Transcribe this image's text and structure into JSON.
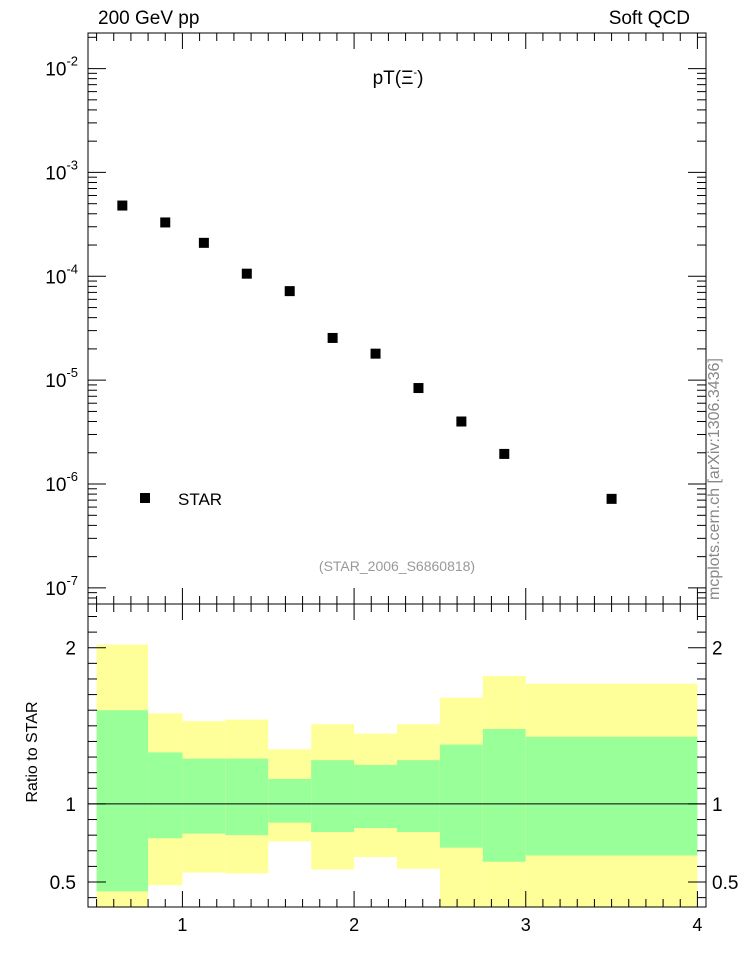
{
  "header": {
    "left": "200 GeV pp",
    "right": "Soft QCD",
    "side_note": "mcplots.cern.ch [arXiv:1306.3436]"
  },
  "chart_data": [
    {
      "type": "scatter",
      "title": "pT(Ξ⁻)",
      "annotation": "(STAR_2006_S6860818)",
      "yscale": "log",
      "xlim": [
        0.45,
        4.05
      ],
      "ylim": [
        7e-08,
        0.022
      ],
      "y_ticks": [
        {
          "v": 0.01,
          "mant": "10",
          "exp": "-2"
        },
        {
          "v": 0.001,
          "mant": "10",
          "exp": "-3"
        },
        {
          "v": 0.0001,
          "mant": "10",
          "exp": "-4"
        },
        {
          "v": 1e-05,
          "mant": "10",
          "exp": "-5"
        },
        {
          "v": 1e-06,
          "mant": "10",
          "exp": "-6"
        },
        {
          "v": 1e-07,
          "mant": "10",
          "exp": "-7"
        }
      ],
      "series": [
        {
          "name": "STAR",
          "color": "#000000",
          "marker": "square",
          "x": [
            0.65,
            0.9,
            1.125,
            1.375,
            1.625,
            1.875,
            2.125,
            2.375,
            2.625,
            2.875,
            3.5
          ],
          "y": [
            0.00048,
            0.00033,
            0.00021,
            0.000106,
            7.2e-05,
            2.55e-05,
            1.8e-05,
            8.4e-06,
            4e-06,
            1.95e-06,
            7.2e-07
          ]
        }
      ],
      "legend": {
        "position": "bottom-left",
        "entries": [
          "STAR"
        ]
      }
    },
    {
      "type": "area",
      "ylabel": "Ratio to STAR",
      "xlim": [
        0.45,
        4.05
      ],
      "ylim": [
        0.34,
        2.28
      ],
      "x_ticks": [
        "1",
        "2",
        "3",
        "4"
      ],
      "y_ticks": [
        "0.5",
        "1",
        "2"
      ],
      "reference_line": 1,
      "colors": {
        "inner_band": "#99ff99",
        "outer_band": "#ffff99"
      },
      "bins": [
        {
          "lo": 0.5,
          "hi": 0.8,
          "inner": [
            0.44,
            1.6
          ],
          "outer": [
            0.0,
            2.02
          ]
        },
        {
          "lo": 0.8,
          "hi": 1.0,
          "inner": [
            0.78,
            1.33
          ],
          "outer": [
            0.48,
            1.58
          ]
        },
        {
          "lo": 1.0,
          "hi": 1.25,
          "inner": [
            0.81,
            1.29
          ],
          "outer": [
            0.56,
            1.53
          ]
        },
        {
          "lo": 1.25,
          "hi": 1.5,
          "inner": [
            0.8,
            1.29
          ],
          "outer": [
            0.555,
            1.54
          ]
        },
        {
          "lo": 1.5,
          "hi": 1.75,
          "inner": [
            0.88,
            1.16
          ],
          "outer": [
            0.76,
            1.35
          ]
        },
        {
          "lo": 1.75,
          "hi": 2.0,
          "inner": [
            0.82,
            1.28
          ],
          "outer": [
            0.58,
            1.51
          ]
        },
        {
          "lo": 2.0,
          "hi": 2.25,
          "inner": [
            0.845,
            1.25
          ],
          "outer": [
            0.66,
            1.45
          ]
        },
        {
          "lo": 2.25,
          "hi": 2.5,
          "inner": [
            0.82,
            1.28
          ],
          "outer": [
            0.585,
            1.51
          ]
        },
        {
          "lo": 2.5,
          "hi": 2.75,
          "inner": [
            0.72,
            1.38
          ],
          "outer": [
            0.0,
            1.68
          ]
        },
        {
          "lo": 2.75,
          "hi": 3.0,
          "inner": [
            0.63,
            1.48
          ],
          "outer": [
            0.0,
            1.82
          ]
        },
        {
          "lo": 3.0,
          "hi": 4.0,
          "inner": [
            0.67,
            1.43
          ],
          "outer": [
            0.0,
            1.77
          ]
        }
      ]
    }
  ]
}
